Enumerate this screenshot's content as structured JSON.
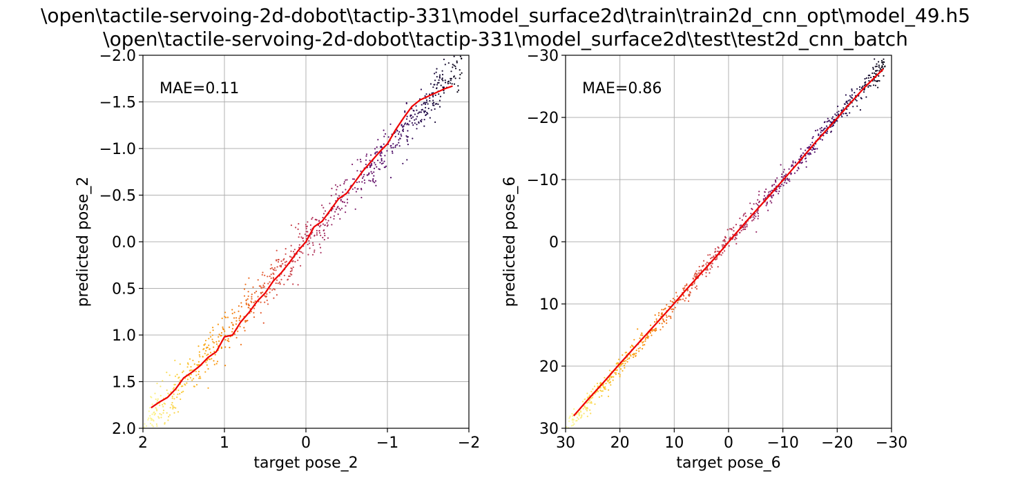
{
  "figure": {
    "title_lines": [
      "\\open\\tactile-servoing-2d-dobot\\tactip-331\\model_surface2d\\train\\train2d_cnn_opt\\model_49.h5",
      "\\open\\tactile-servoing-2d-dobot\\tactip-331\\model_surface2d\\test\\test2d_cnn_batch"
    ]
  },
  "chart_data": [
    {
      "type": "scatter",
      "xlabel": "target pose_2",
      "ylabel": "predicted pose_2",
      "annotation": "MAE=0.11",
      "xlim": [
        2,
        -2
      ],
      "ylim": [
        2,
        -2
      ],
      "xticks": [
        2,
        1,
        0,
        -1,
        -2
      ],
      "xtick_labels": [
        "2",
        "1",
        "0",
        "−1",
        "−2"
      ],
      "yticks": [
        -2.0,
        -1.5,
        -1.0,
        -0.5,
        0.0,
        0.5,
        1.0,
        1.5,
        2.0
      ],
      "ytick_labels": [
        "−2.0",
        "−1.5",
        "−1.0",
        "−0.5",
        "0.0",
        "0.5",
        "1.0",
        "1.5",
        "2.0"
      ],
      "grid": true,
      "scatter_spread": 0.13,
      "scatter_count": 900,
      "colormap": "inferno",
      "trend_line": {
        "color": "#ee0000",
        "x": [
          1.9,
          1.8,
          1.7,
          1.6,
          1.5,
          1.4,
          1.3,
          1.2,
          1.1,
          1.0,
          0.9,
          0.8,
          0.7,
          0.6,
          0.5,
          0.4,
          0.3,
          0.2,
          0.1,
          0.0,
          -0.1,
          -0.2,
          -0.3,
          -0.4,
          -0.5,
          -0.6,
          -0.7,
          -0.8,
          -0.9,
          -1.0,
          -1.1,
          -1.2,
          -1.3,
          -1.4,
          -1.5,
          -1.6,
          -1.7,
          -1.8
        ],
        "y": [
          1.78,
          1.72,
          1.67,
          1.58,
          1.46,
          1.4,
          1.33,
          1.24,
          1.18,
          1.02,
          1.0,
          0.86,
          0.76,
          0.64,
          0.55,
          0.42,
          0.33,
          0.22,
          0.1,
          0.0,
          -0.16,
          -0.22,
          -0.34,
          -0.46,
          -0.52,
          -0.64,
          -0.76,
          -0.86,
          -0.96,
          -1.05,
          -1.2,
          -1.33,
          -1.45,
          -1.52,
          -1.56,
          -1.6,
          -1.64,
          -1.67
        ]
      }
    },
    {
      "type": "scatter",
      "xlabel": "target pose_6",
      "ylabel": "predicted pose_6",
      "annotation": "MAE=0.86",
      "xlim": [
        30,
        -30
      ],
      "ylim": [
        30,
        -30
      ],
      "xticks": [
        30,
        20,
        10,
        0,
        -10,
        -20,
        -30
      ],
      "xtick_labels": [
        "30",
        "20",
        "10",
        "0",
        "−10",
        "−20",
        "−30"
      ],
      "yticks": [
        -30,
        -20,
        -10,
        0,
        10,
        20,
        30
      ],
      "ytick_labels": [
        "−30",
        "−20",
        "−10",
        "0",
        "10",
        "20",
        "30"
      ],
      "grid": true,
      "scatter_spread": 0.9,
      "scatter_count": 900,
      "colormap": "inferno",
      "trend_line": {
        "color": "#ee0000",
        "x": [
          28.5,
          26,
          23,
          20,
          17,
          14,
          11,
          8,
          5,
          2,
          -1,
          -4,
          -7,
          -10,
          -13,
          -16,
          -19,
          -22,
          -25,
          -28.5
        ],
        "y": [
          28.0,
          25.5,
          22.6,
          19.6,
          16.7,
          13.8,
          10.9,
          7.9,
          5.0,
          2.1,
          -1.0,
          -4.0,
          -6.9,
          -9.9,
          -12.9,
          -16.0,
          -18.9,
          -21.9,
          -24.8,
          -27.8
        ]
      }
    }
  ]
}
